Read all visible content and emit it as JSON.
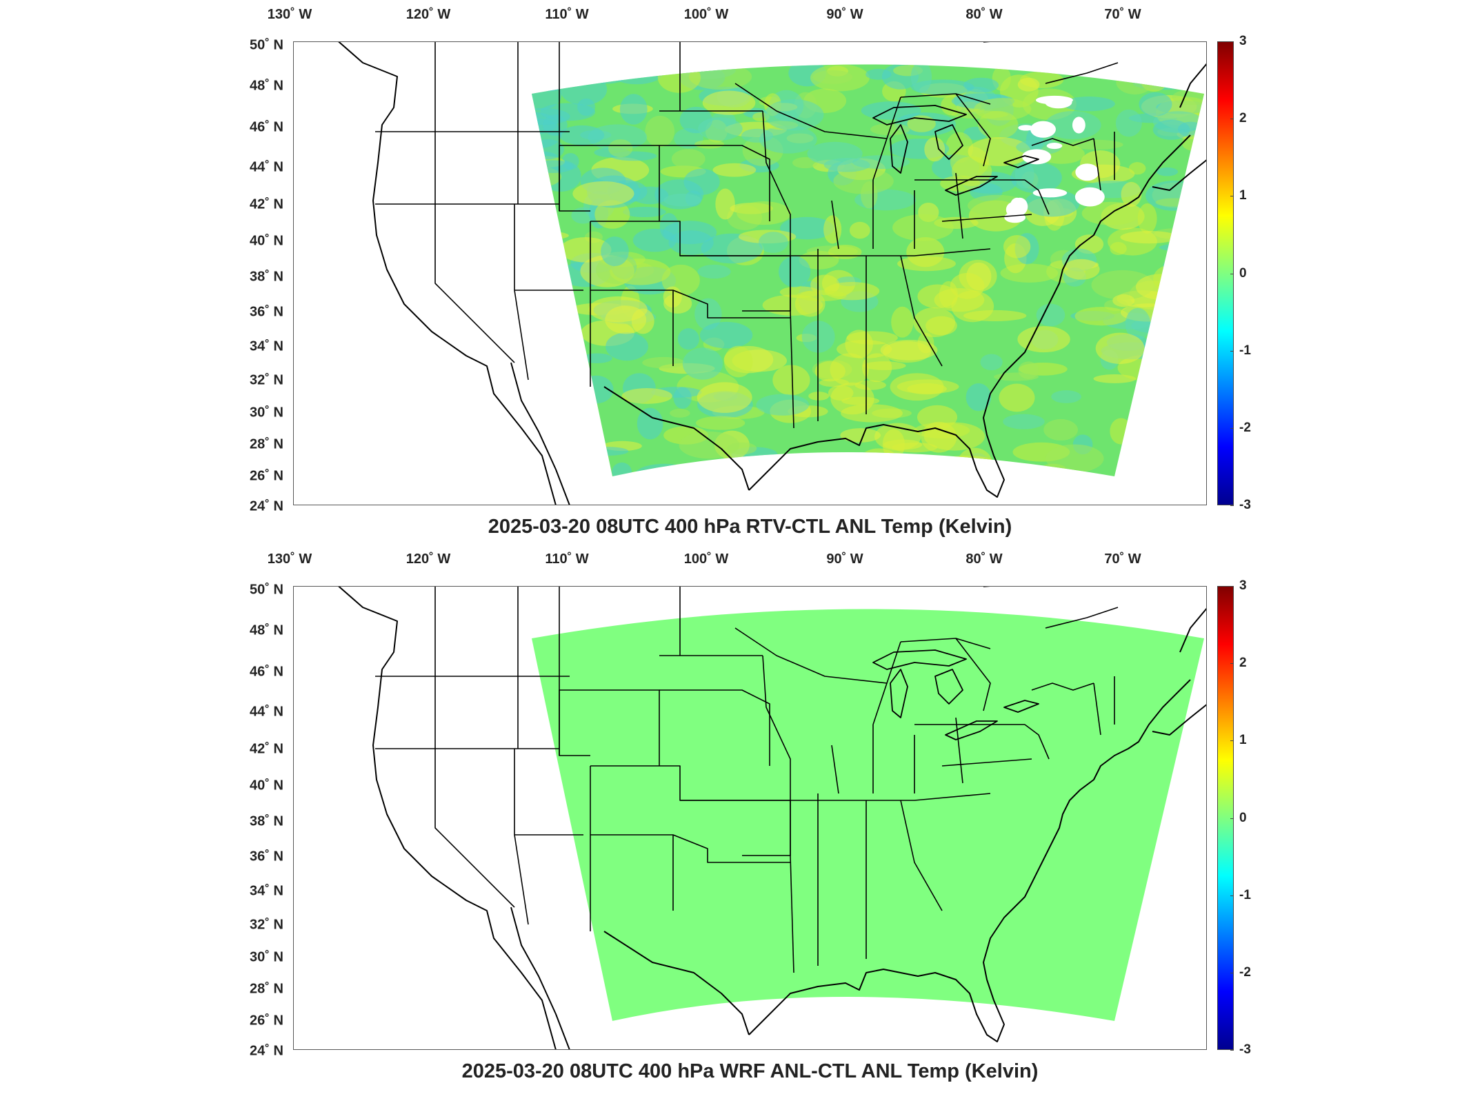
{
  "panels": [
    {
      "title": "2025-03-20 08UTC 400 hPa RTV-CTL ANL Temp (Kelvin)",
      "field_style": "noisy",
      "field_color": "#6ee46e"
    },
    {
      "title": "2025-03-20 08UTC 400 hPa WRF ANL-CTL ANL Temp (Kelvin)",
      "field_style": "uniform",
      "field_color": "#80ff80"
    }
  ],
  "map": {
    "lon_ticks": [
      "130˚ W",
      "120˚ W",
      "110˚ W",
      "100˚ W",
      "90˚ W",
      "80˚ W",
      "70˚ W"
    ],
    "lat_ticks": [
      "50˚ N",
      "48˚ N",
      "46˚ N",
      "44˚ N",
      "42˚ N",
      "40˚ N",
      "38˚ N",
      "36˚ N",
      "34˚ N",
      "32˚ N",
      "30˚ N",
      "28˚ N",
      "26˚ N",
      "24˚ N"
    ],
    "lon_range": [
      -132,
      -67
    ],
    "lat_range": [
      24,
      50
    ]
  },
  "colorbar": {
    "ticks": [
      "3",
      "2",
      "1",
      "0",
      "-1",
      "-2",
      "-3"
    ],
    "range": [
      -3,
      3
    ],
    "colormap": "jet"
  }
}
